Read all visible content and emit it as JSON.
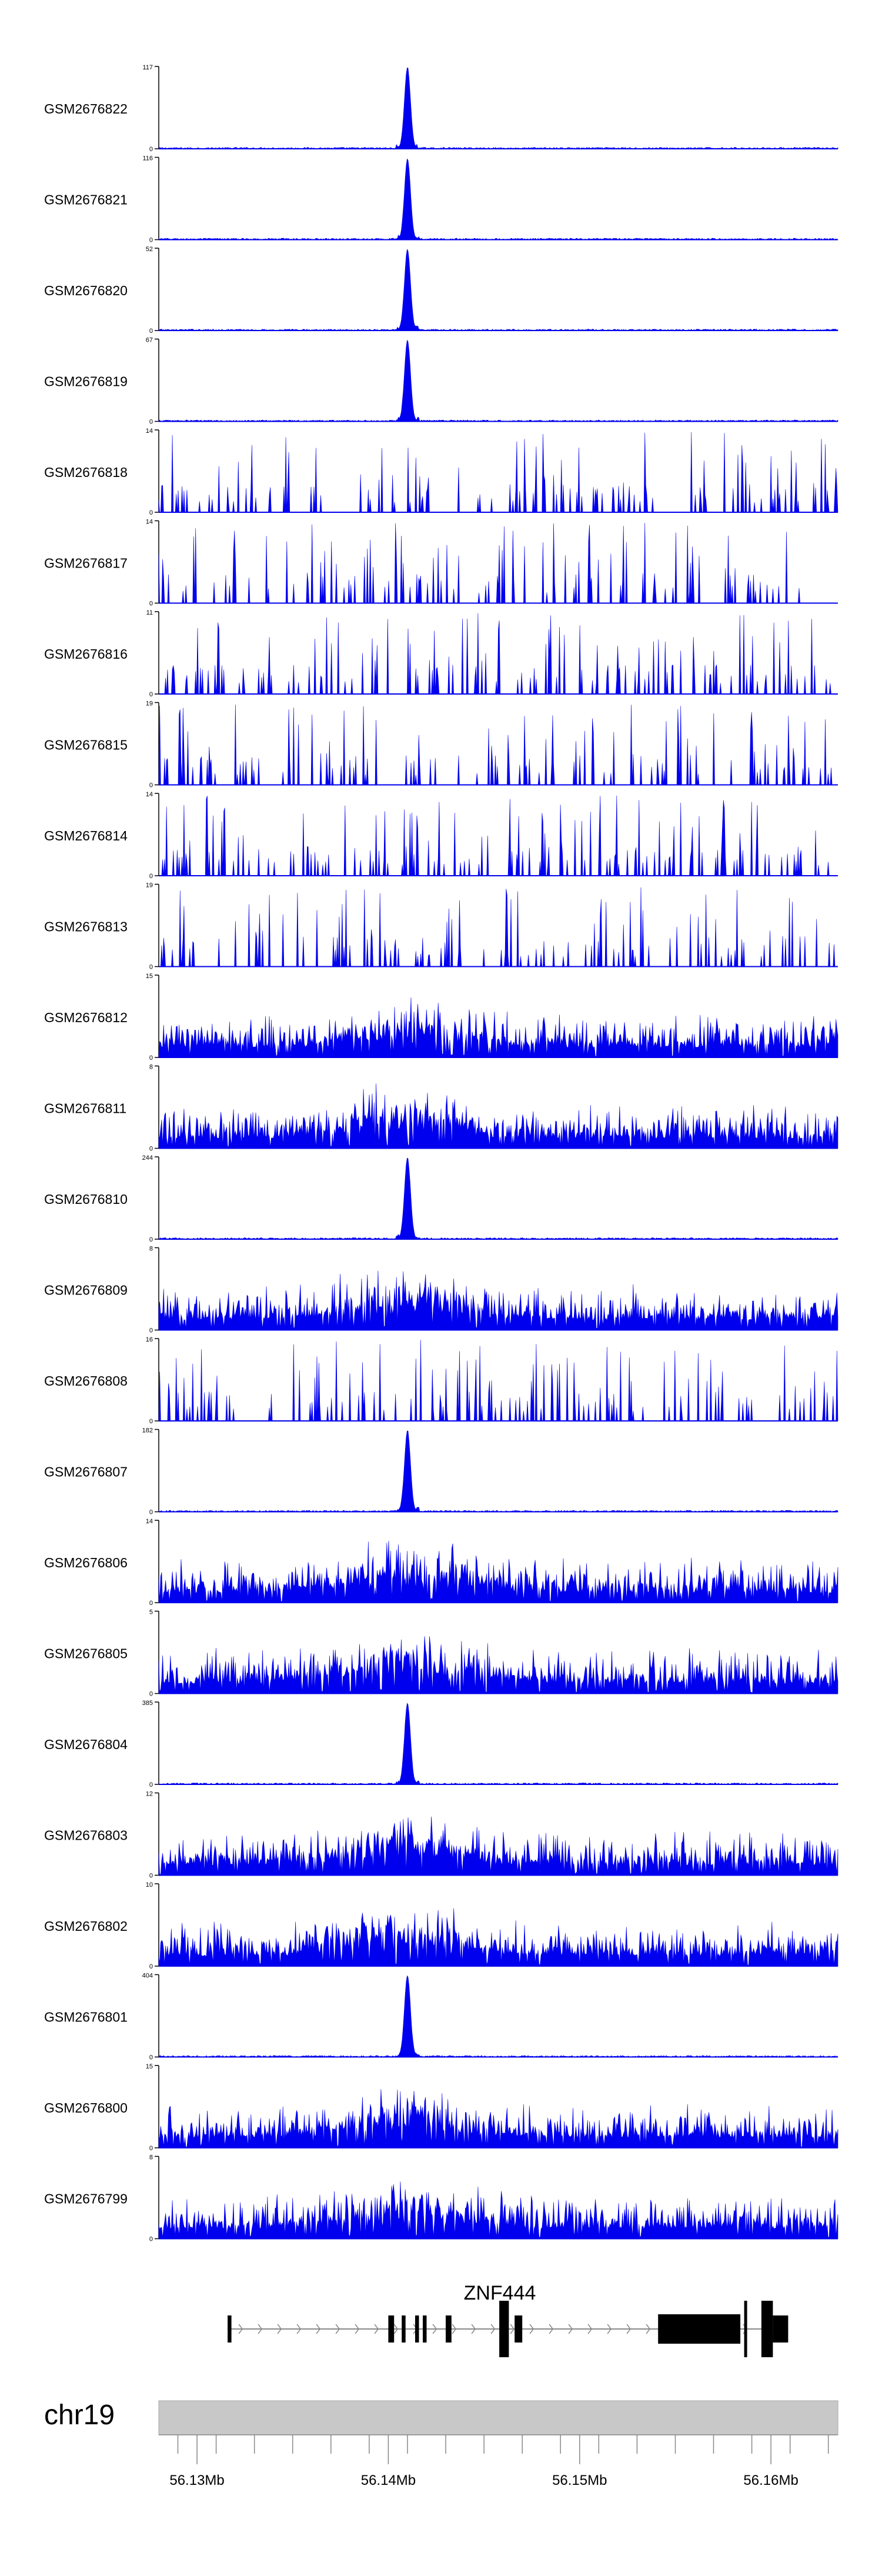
{
  "chart_data": {
    "type": "area",
    "title": "",
    "colors": {
      "signal": "#0000ee",
      "axis": "#000000",
      "ideogram": "#c8c8c8",
      "gene": "#000000"
    },
    "xaxis": {
      "range": [
        56.128,
        56.1635
      ],
      "ticks": [
        56.13,
        56.14,
        56.15,
        56.16
      ],
      "tick_labels": [
        "56.13Mb",
        "56.14Mb",
        "56.15Mb",
        "56.16Mb"
      ]
    },
    "chromosome": "chr19",
    "gene": {
      "name": "ZNF444",
      "strand": "+",
      "line_range": [
        56.1316,
        56.1609
      ],
      "exons": [
        [
          56.1316,
          56.1318
        ],
        [
          56.14,
          56.1403
        ],
        [
          56.1407,
          56.1409
        ],
        [
          56.1414,
          56.1416
        ],
        [
          56.1418,
          56.142
        ],
        [
          56.143,
          56.1433
        ],
        [
          56.1458,
          56.1463
        ],
        [
          56.1466,
          56.147
        ],
        [
          56.1541,
          56.1584
        ],
        [
          56.1586,
          56.1587
        ],
        [
          56.1595,
          56.1601
        ],
        [
          56.1601,
          56.1609
        ]
      ]
    },
    "tracks": [
      {
        "name": "GSM2676822",
        "ymax": "117",
        "ymin": "0",
        "peak_max": 117,
        "shape": "peak"
      },
      {
        "name": "GSM2676821",
        "ymax": "116",
        "ymin": "0",
        "peak_max": 116,
        "shape": "peak"
      },
      {
        "name": "GSM2676820",
        "ymax": "52",
        "ymin": "0",
        "peak_max": 52,
        "shape": "peak"
      },
      {
        "name": "GSM2676819",
        "ymax": "67",
        "ymin": "0",
        "peak_max": 67,
        "shape": "peak"
      },
      {
        "name": "GSM2676818",
        "ymax": "14",
        "ymin": "0",
        "peak_max": 14,
        "shape": "sparse"
      },
      {
        "name": "GSM2676817",
        "ymax": "14",
        "ymin": "0",
        "peak_max": 14,
        "shape": "sparse"
      },
      {
        "name": "GSM2676816",
        "ymax": "11",
        "ymin": "0",
        "peak_max": 11,
        "shape": "sparse"
      },
      {
        "name": "GSM2676815",
        "ymax": "19",
        "ymin": "0",
        "peak_max": 19,
        "shape": "sparse"
      },
      {
        "name": "GSM2676814",
        "ymax": "14",
        "ymin": "0",
        "peak_max": 14,
        "shape": "sparse"
      },
      {
        "name": "GSM2676813",
        "ymax": "19",
        "ymin": "0",
        "peak_max": 19,
        "shape": "sparse"
      },
      {
        "name": "GSM2676812",
        "ymax": "15",
        "ymin": "0",
        "peak_max": 15,
        "shape": "dense"
      },
      {
        "name": "GSM2676811",
        "ymax": "8",
        "ymin": "0",
        "peak_max": 8,
        "shape": "dense"
      },
      {
        "name": "GSM2676810",
        "ymax": "244",
        "ymin": "0",
        "peak_max": 244,
        "shape": "peak"
      },
      {
        "name": "GSM2676809",
        "ymax": "8",
        "ymin": "0",
        "peak_max": 8,
        "shape": "dense"
      },
      {
        "name": "GSM2676808",
        "ymax": "16",
        "ymin": "0",
        "peak_max": 16,
        "shape": "sparse"
      },
      {
        "name": "GSM2676807",
        "ymax": "182",
        "ymin": "0",
        "peak_max": 182,
        "shape": "peak"
      },
      {
        "name": "GSM2676806",
        "ymax": "14",
        "ymin": "0",
        "peak_max": 14,
        "shape": "dense"
      },
      {
        "name": "GSM2676805",
        "ymax": "5",
        "ymin": "0",
        "peak_max": 5,
        "shape": "dense"
      },
      {
        "name": "GSM2676804",
        "ymax": "385",
        "ymin": "0",
        "peak_max": 385,
        "shape": "peak"
      },
      {
        "name": "GSM2676803",
        "ymax": "12",
        "ymin": "0",
        "peak_max": 12,
        "shape": "dense"
      },
      {
        "name": "GSM2676802",
        "ymax": "10",
        "ymin": "0",
        "peak_max": 10,
        "shape": "dense"
      },
      {
        "name": "GSM2676801",
        "ymax": "404",
        "ymin": "0",
        "peak_max": 404,
        "shape": "peak"
      },
      {
        "name": "GSM2676800",
        "ymax": "15",
        "ymin": "0",
        "peak_max": 15,
        "shape": "dense"
      },
      {
        "name": "GSM2676799",
        "ymax": "8",
        "ymin": "0",
        "peak_max": 8,
        "shape": "dense"
      }
    ]
  }
}
